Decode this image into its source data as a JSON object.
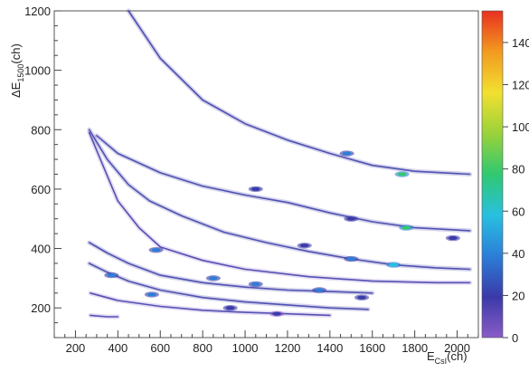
{
  "chart_data": {
    "type": "heatmap",
    "title": "",
    "xlabel": {
      "main": "E",
      "sub": "CsI",
      "unit": "(ch)"
    },
    "ylabel": {
      "main": "ΔE",
      "sub": "1500",
      "unit": "(ch)"
    },
    "xlim": [
      100,
      2100
    ],
    "ylim": [
      100,
      1200
    ],
    "xticks": [
      200,
      400,
      600,
      800,
      1000,
      1200,
      1400,
      1600,
      1800,
      2000
    ],
    "yticks": [
      200,
      400,
      600,
      800,
      1000,
      1200
    ],
    "colorbar": {
      "range": [
        0,
        155
      ],
      "ticks": [
        0,
        20,
        40,
        60,
        80,
        100,
        120,
        140
      ],
      "colors": [
        "#8a5cc8",
        "#3a3aa8",
        "#2c7ed8",
        "#28c0e0",
        "#30c870",
        "#9ad23a",
        "#f2e030",
        "#f29a20",
        "#e83020"
      ]
    },
    "grid": false,
    "bands": [
      {
        "points": [
          [
            450,
            1200
          ],
          [
            600,
            1040
          ],
          [
            800,
            900
          ],
          [
            1000,
            820
          ],
          [
            1200,
            765
          ],
          [
            1400,
            720
          ],
          [
            1600,
            680
          ],
          [
            1800,
            660
          ],
          [
            2060,
            650
          ]
        ],
        "intensity": 15
      },
      {
        "points": [
          [
            300,
            780
          ],
          [
            400,
            720
          ],
          [
            600,
            655
          ],
          [
            800,
            610
          ],
          [
            1000,
            580
          ],
          [
            1200,
            555
          ],
          [
            1400,
            520
          ],
          [
            1600,
            490
          ],
          [
            1800,
            470
          ],
          [
            2060,
            460
          ]
        ],
        "intensity": 15
      },
      {
        "points": [
          [
            265,
            800
          ],
          [
            350,
            700
          ],
          [
            450,
            615
          ],
          [
            550,
            560
          ],
          [
            700,
            510
          ],
          [
            900,
            455
          ],
          [
            1100,
            420
          ],
          [
            1300,
            390
          ],
          [
            1500,
            365
          ],
          [
            1700,
            345
          ],
          [
            1900,
            335
          ],
          [
            2060,
            330
          ]
        ],
        "intensity": 12
      },
      {
        "points": [
          [
            265,
            790
          ],
          [
            400,
            560
          ],
          [
            500,
            470
          ],
          [
            600,
            405
          ],
          [
            800,
            360
          ],
          [
            1000,
            330
          ],
          [
            1300,
            305
          ],
          [
            1600,
            290
          ],
          [
            1900,
            285
          ],
          [
            2060,
            285
          ]
        ],
        "intensity": 8
      },
      {
        "points": [
          [
            265,
            420
          ],
          [
            350,
            385
          ],
          [
            450,
            350
          ],
          [
            600,
            310
          ],
          [
            800,
            285
          ],
          [
            1000,
            270
          ],
          [
            1200,
            260
          ],
          [
            1400,
            255
          ],
          [
            1600,
            250
          ]
        ],
        "intensity": 10
      },
      {
        "points": [
          [
            265,
            350
          ],
          [
            350,
            320
          ],
          [
            450,
            290
          ],
          [
            600,
            260
          ],
          [
            800,
            235
          ],
          [
            1000,
            220
          ],
          [
            1200,
            210
          ],
          [
            1400,
            200
          ],
          [
            1580,
            195
          ]
        ],
        "intensity": 10
      },
      {
        "points": [
          [
            270,
            250
          ],
          [
            400,
            225
          ],
          [
            600,
            205
          ],
          [
            800,
            192
          ],
          [
            1000,
            185
          ],
          [
            1200,
            180
          ],
          [
            1400,
            175
          ]
        ],
        "intensity": 6
      },
      {
        "points": [
          [
            270,
            175
          ],
          [
            350,
            170
          ],
          [
            400,
            170
          ]
        ],
        "intensity": 6
      }
    ],
    "hotspots": [
      {
        "x": 1740,
        "y": 650,
        "value": 80
      },
      {
        "x": 1480,
        "y": 720,
        "value": 30
      },
      {
        "x": 1760,
        "y": 470,
        "value": 70
      },
      {
        "x": 1500,
        "y": 500,
        "value": 25
      },
      {
        "x": 1050,
        "y": 600,
        "value": 25
      },
      {
        "x": 1700,
        "y": 345,
        "value": 60
      },
      {
        "x": 1500,
        "y": 365,
        "value": 30
      },
      {
        "x": 1280,
        "y": 410,
        "value": 20
      },
      {
        "x": 580,
        "y": 395,
        "value": 45
      },
      {
        "x": 850,
        "y": 300,
        "value": 40
      },
      {
        "x": 1050,
        "y": 280,
        "value": 35
      },
      {
        "x": 1350,
        "y": 260,
        "value": 30
      },
      {
        "x": 1550,
        "y": 235,
        "value": 25
      },
      {
        "x": 370,
        "y": 310,
        "value": 40
      },
      {
        "x": 560,
        "y": 245,
        "value": 30
      },
      {
        "x": 930,
        "y": 200,
        "value": 20
      },
      {
        "x": 1150,
        "y": 180,
        "value": 15
      },
      {
        "x": 1980,
        "y": 435,
        "value": 25
      }
    ]
  }
}
